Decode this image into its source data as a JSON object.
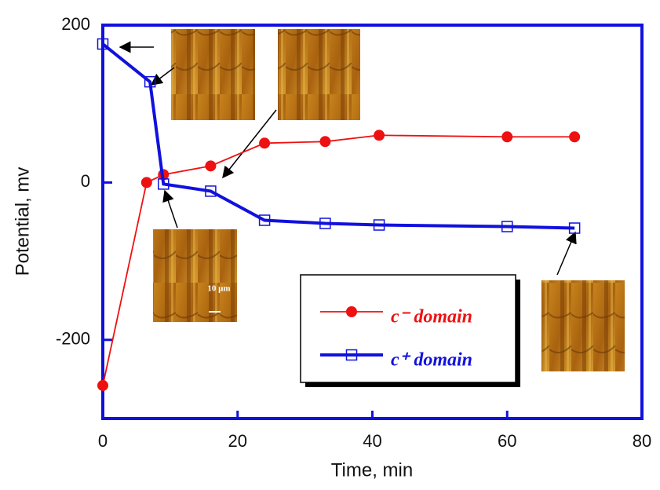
{
  "chart_data": {
    "type": "line",
    "x_label": "Time, min",
    "y_label": "Potential, mv",
    "xlim": [
      0,
      80
    ],
    "xticks": [
      0,
      20,
      40,
      60,
      80
    ],
    "ylim": [
      -300,
      200
    ],
    "yticks": [
      -200,
      0,
      200
    ],
    "series": [
      {
        "name": "c⁻ domain",
        "color": "#ee1111",
        "marker": "circle",
        "x": [
          0,
          6.5,
          9,
          16,
          24,
          33,
          41,
          60,
          70
        ],
        "values": [
          -258,
          0,
          10,
          21,
          50,
          52,
          60,
          58,
          58
        ]
      },
      {
        "name": "c⁺ domain",
        "color": "#1111dd",
        "marker": "square",
        "x": [
          0,
          7,
          9,
          16,
          24,
          33,
          41,
          60,
          70
        ],
        "values": [
          176,
          128,
          -2,
          -11,
          -48,
          -52,
          -54,
          -56,
          -58
        ]
      }
    ],
    "annotations": [
      "10 μm"
    ]
  }
}
